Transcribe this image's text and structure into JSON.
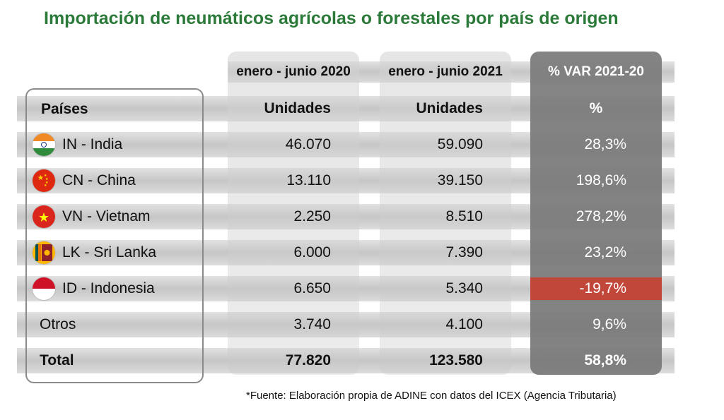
{
  "title": "Importación de neumáticos agrícolas o forestales por país de origen",
  "source": "*Fuente: Elaboración propia de ADINE con datos del ICEX (Agencia Tributaria)",
  "colors": {
    "title": "#2b7a3a",
    "negative": "#c1473a",
    "var_column": "#7b7b7b"
  },
  "chart_data": {
    "type": "table",
    "period_headers": [
      "enero - junio 2020",
      "enero - junio 2021",
      "% VAR 2021-20"
    ],
    "column_headers": [
      "Países",
      "Unidades",
      "Unidades",
      "%"
    ],
    "rows": [
      {
        "country": "IN - India",
        "flag": "india-flag-icon",
        "u2020": "46.070",
        "u2021": "59.090",
        "var": "28,3%"
      },
      {
        "country": "CN - China",
        "flag": "china-flag-icon",
        "u2020": "13.110",
        "u2021": "39.150",
        "var": "198,6%"
      },
      {
        "country": "VN - Vietnam",
        "flag": "vietnam-flag-icon",
        "u2020": "2.250",
        "u2021": "8.510",
        "var": "278,2%"
      },
      {
        "country": "LK - Sri Lanka",
        "flag": "sri-lanka-flag-icon",
        "u2020": "6.000",
        "u2021": "7.390",
        "var": "23,2%"
      },
      {
        "country": "ID - Indonesia",
        "flag": "indonesia-flag-icon",
        "u2020": "6.650",
        "u2021": "5.340",
        "var": "-19,7%",
        "negative": true
      },
      {
        "country": "Otros",
        "u2020": "3.740",
        "u2021": "4.100",
        "var": "9,6%"
      }
    ],
    "total": {
      "label": "Total",
      "u2020": "77.820",
      "u2021": "123.580",
      "var": "58,8%"
    }
  }
}
